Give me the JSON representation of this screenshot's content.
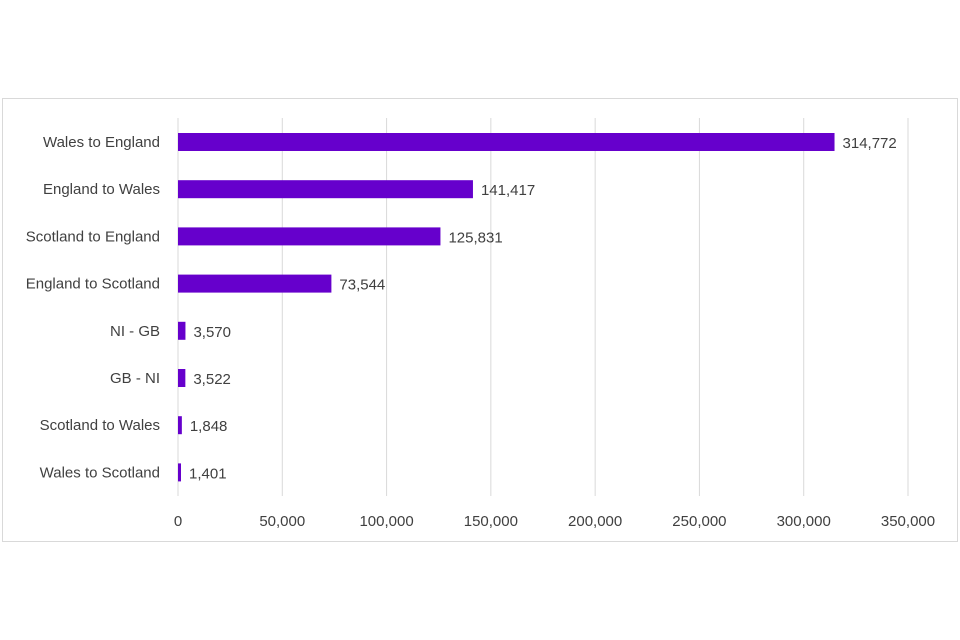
{
  "chart_data": {
    "type": "bar",
    "orientation": "horizontal",
    "title": "",
    "xlabel": "",
    "ylabel": "",
    "categories": [
      "Wales to England",
      "England to Wales",
      "Scotland to England",
      "England to Scotland",
      "NI - GB",
      "GB - NI",
      "Scotland to Wales",
      "Wales to Scotland"
    ],
    "values": [
      314772,
      141417,
      125831,
      73544,
      3570,
      3522,
      1848,
      1401
    ],
    "value_labels": [
      "314,772",
      "141,417",
      "125,831",
      "73,544",
      "3,570",
      "3,522",
      "1,848",
      "1,401"
    ],
    "xlim": [
      0,
      350000
    ],
    "x_ticks": [
      0,
      50000,
      100000,
      150000,
      200000,
      250000,
      300000,
      350000
    ],
    "x_tick_labels": [
      "0",
      "50,000",
      "100,000",
      "150,000",
      "200,000",
      "250,000",
      "300,000",
      "350,000"
    ],
    "grid": "vertical",
    "legend": "none",
    "bar_color": "#6600cc",
    "grid_color": "#d9d9d9"
  }
}
